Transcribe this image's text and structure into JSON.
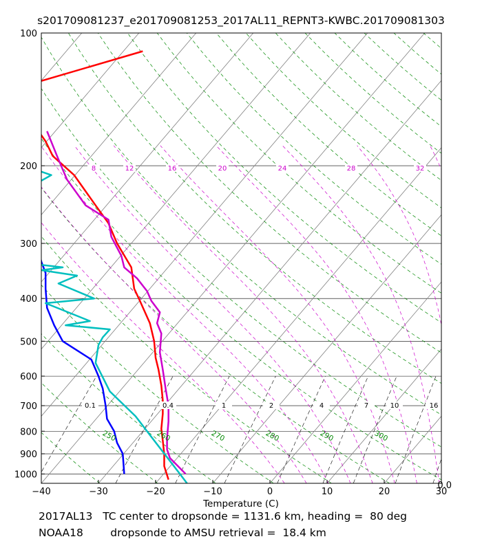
{
  "title": "s201709081237_e201709081253_2017AL11_REPNT3-KWBC.201709081303",
  "footer": {
    "line1": "2017AL13   TC center to dropsonde = 1131.6 km, heading =  80 deg",
    "line2": "NOAA18        dropsonde to AMSU retrieval =  18.4 km"
  },
  "corner_label": "0.0",
  "chart_data": {
    "type": "line",
    "title": "s201709081237_e201709081253_2017AL11_REPNT3-KWBC.201709081303",
    "xlabel": "Temperature (C)",
    "ylabel": "",
    "xlim": [
      -40,
      30
    ],
    "ylim": [
      1050,
      100
    ],
    "x_ticks": [
      -40,
      -30,
      -20,
      -10,
      0,
      10,
      20,
      30
    ],
    "x_tick_labels": [
      "−40",
      "−30",
      "−20",
      "−10",
      "0",
      "10",
      "20",
      "30"
    ],
    "y_ticks": [
      100,
      200,
      300,
      400,
      500,
      600,
      700,
      800,
      900,
      1000
    ],
    "y_tick_labels": [
      "100",
      "200",
      "300",
      "400",
      "500",
      "600",
      "700",
      "800",
      "900",
      "1000"
    ],
    "dry_adiabat_labels": [
      "250",
      "260",
      "270",
      "280",
      "290",
      "300"
    ],
    "mixing_ratio_labels": [
      "0.1",
      "0.4",
      "1",
      "2",
      "4",
      "7",
      "10",
      "16"
    ],
    "moist_adiabat_labels": [
      "8",
      "12",
      "16",
      "20",
      "24",
      "28",
      "32"
    ],
    "colors": {
      "red": "#ff0000",
      "blue": "#0000ff",
      "magenta": "#cc00cc",
      "cyan": "#00bfbf",
      "adiabat": "#008800",
      "moist": "#cc00cc",
      "isotherm": "#808080"
    },
    "series": [
      {
        "name": "red",
        "points": [
          [
            1071,
            110
          ],
          [
            998,
            129
          ],
          [
            991,
            155
          ],
          [
            1003,
            176
          ],
          [
            1008,
            190
          ],
          [
            1023,
            210
          ],
          [
            1038,
            246
          ],
          [
            1047,
            270
          ],
          [
            1053,
            300
          ],
          [
            1063,
            340
          ],
          [
            1065,
            380
          ],
          [
            1069,
            405
          ],
          [
            1076,
            455
          ],
          [
            1079,
            500
          ],
          [
            1080,
            545
          ],
          [
            1082,
            580
          ],
          [
            1084,
            630
          ],
          [
            1085,
            680
          ],
          [
            1085,
            730
          ],
          [
            1084,
            790
          ],
          [
            1085,
            840
          ],
          [
            1086,
            900
          ],
          [
            1086,
            960
          ],
          [
            1089,
            1030
          ]
        ]
      },
      {
        "name": "blue",
        "points": [
          [
            971,
            100
          ],
          [
            964,
            113
          ],
          [
            963,
            127
          ],
          [
            962,
            145
          ],
          [
            962,
            160
          ],
          [
            964,
            180
          ],
          [
            972,
            210
          ],
          [
            982,
            245
          ],
          [
            992,
            280
          ],
          [
            997,
            300
          ],
          [
            1000,
            330
          ],
          [
            1003,
            350
          ],
          [
            1003,
            380
          ],
          [
            1004,
            420
          ],
          [
            1009,
            460
          ],
          [
            1015,
            500
          ],
          [
            1035,
            550
          ],
          [
            1040,
            600
          ],
          [
            1043,
            640
          ],
          [
            1045,
            700
          ],
          [
            1046,
            750
          ],
          [
            1051,
            800
          ],
          [
            1053,
            850
          ],
          [
            1057,
            900
          ],
          [
            1058,
            1000
          ]
        ]
      },
      {
        "name": "magenta",
        "points": [
          [
            1004,
            167
          ],
          [
            1011,
            190
          ],
          [
            1018,
            215
          ],
          [
            1031,
            246
          ],
          [
            1047,
            265
          ],
          [
            1049,
            290
          ],
          [
            1056,
            320
          ],
          [
            1058,
            340
          ],
          [
            1067,
            360
          ],
          [
            1074,
            385
          ],
          [
            1077,
            405
          ],
          [
            1083,
            430
          ],
          [
            1081,
            455
          ],
          [
            1084,
            480
          ],
          [
            1083,
            530
          ],
          [
            1085,
            580
          ],
          [
            1087,
            640
          ],
          [
            1089,
            700
          ],
          [
            1089,
            760
          ],
          [
            1088,
            830
          ],
          [
            1088,
            880
          ],
          [
            1090,
            920
          ],
          [
            1101,
            1000
          ]
        ]
      },
      {
        "name": "cyan",
        "points": [
          [
            968,
            190
          ],
          [
            1007,
            210
          ],
          [
            965,
            250
          ],
          [
            964,
            270
          ],
          [
            982,
            275
          ],
          [
            965,
            295
          ],
          [
            995,
            300
          ],
          [
            972,
            310
          ],
          [
            981,
            330
          ],
          [
            1015,
            340
          ],
          [
            1000,
            345
          ],
          [
            1025,
            355
          ],
          [
            1012,
            370
          ],
          [
            1037,
            400
          ],
          [
            1003,
            410
          ],
          [
            1034,
            450
          ],
          [
            1017,
            460
          ],
          [
            1048,
            470
          ],
          [
            1043,
            490
          ],
          [
            1040,
            510
          ],
          [
            1038,
            560
          ],
          [
            1048,
            650
          ],
          [
            1066,
            740
          ],
          [
            1079,
            840
          ],
          [
            1097,
            1000
          ],
          [
            1102,
            1050
          ]
        ]
      }
    ]
  }
}
